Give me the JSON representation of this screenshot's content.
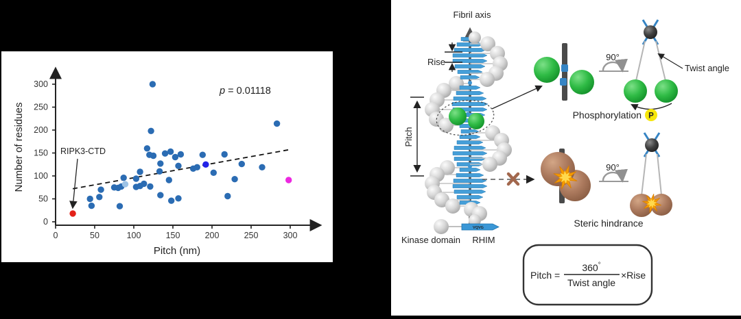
{
  "left_panel": {
    "chart_data": {
      "type": "scatter",
      "title": "",
      "xlabel": "Pitch (nm)",
      "ylabel": "Number of residues",
      "xlim": [
        0,
        340
      ],
      "ylim": [
        0,
        320
      ],
      "x_ticks": [
        0,
        50,
        100,
        150,
        200,
        250,
        300
      ],
      "y_ticks": [
        0,
        50,
        100,
        150,
        200,
        250,
        300
      ],
      "grid": false,
      "annotation": {
        "var": "p",
        "rest": " = 0.01118"
      },
      "outlier_label": "RIPK3-CTD",
      "trend_line": {
        "x1": 22,
        "y1": 72,
        "x2": 298,
        "y2": 157,
        "style": "dashed"
      },
      "series": [
        {
          "name": "amyloid-fibrils",
          "color": "#2B6CB3",
          "points": [
            [
              44,
              50
            ],
            [
              46,
              35
            ],
            [
              56,
              54
            ],
            [
              58,
              70
            ],
            [
              75,
              75
            ],
            [
              80,
              74
            ],
            [
              84,
              77
            ],
            [
              87,
              96
            ],
            [
              82,
              34
            ],
            [
              103,
              76
            ],
            [
              108,
              78
            ],
            [
              113,
              83
            ],
            [
              121,
              77
            ],
            [
              103,
              94
            ],
            [
              108,
              109
            ],
            [
              133,
              110
            ],
            [
              117,
              160
            ],
            [
              120,
              146
            ],
            [
              125,
              144
            ],
            [
              122,
              198
            ],
            [
              124,
              300
            ],
            [
              134,
              127
            ],
            [
              140,
              149
            ],
            [
              147,
              153
            ],
            [
              153,
              141
            ],
            [
              157,
              122
            ],
            [
              160,
              147
            ],
            [
              145,
              91
            ],
            [
              134,
              58
            ],
            [
              148,
              46
            ],
            [
              157,
              51
            ],
            [
              176,
              116
            ],
            [
              181,
              119
            ],
            [
              188,
              146
            ],
            [
              202,
              107
            ],
            [
              216,
              147
            ],
            [
              220,
              56
            ],
            [
              229,
              93
            ],
            [
              238,
              126
            ],
            [
              264,
              119
            ],
            [
              283,
              214
            ]
          ]
        },
        {
          "name": "highlight-light-blue",
          "color": "#9DC3E6",
          "points": [
            [
              89,
              82
            ]
          ]
        },
        {
          "name": "highlight-dark-blue",
          "color": "#2323E8",
          "points": [
            [
              192,
              125
            ]
          ]
        },
        {
          "name": "ripk3-ctd",
          "color": "#E32119",
          "points": [
            [
              22,
              18
            ]
          ]
        },
        {
          "name": "highlight-magenta",
          "color": "#EC28E0",
          "points": [
            [
              298,
              91
            ]
          ]
        }
      ]
    }
  },
  "right_panel": {
    "labels": {
      "fibril_axis": "Fibril axis",
      "rise": "Rise",
      "pitch": "Pitch",
      "rotation_top": "90°",
      "rotation_bottom": "90°",
      "twist_angle": "Twist angle",
      "phosphorylation": "Phosphorylation",
      "phospho_symbol": "P",
      "steric_hindrance": "Steric hindrance",
      "kinase_domain": "Kinase domain",
      "rhim": "RHIM",
      "rhim_motif": "VQVG"
    },
    "formula": {
      "lhs": "Pitch =",
      "numerator": "360",
      "degree": "°",
      "denominator": "Twist angle",
      "multiplier": "×Rise"
    }
  }
}
